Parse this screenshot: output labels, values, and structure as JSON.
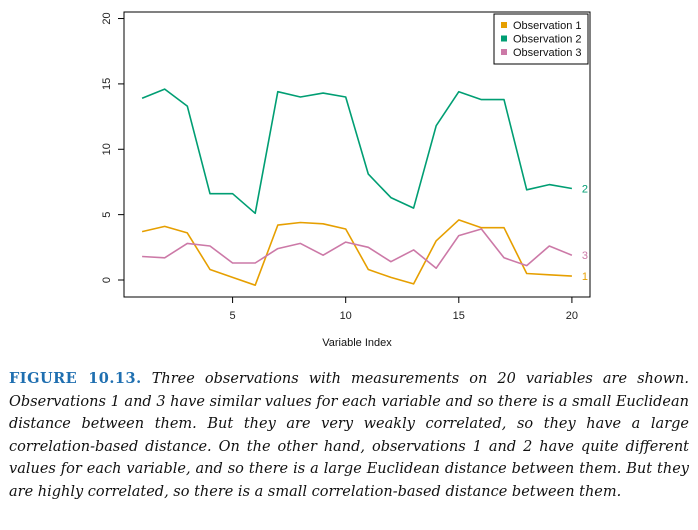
{
  "chart_data": {
    "type": "line",
    "x": [
      1,
      2,
      3,
      4,
      5,
      6,
      7,
      8,
      9,
      10,
      11,
      12,
      13,
      14,
      15,
      16,
      17,
      18,
      19,
      20
    ],
    "xlabel": "Variable Index",
    "ylabel": "",
    "xlim": [
      0.2,
      20.8
    ],
    "ylim": [
      -1.3,
      20.5
    ],
    "xticks": [
      5,
      10,
      15,
      20
    ],
    "yticks": [
      0,
      5,
      10,
      15,
      20
    ],
    "legend_position": "top-right",
    "series": [
      {
        "name": "Observation 1",
        "end_label": "1",
        "color": "#E69F00",
        "values": [
          3.7,
          4.1,
          3.6,
          0.8,
          0.2,
          -0.4,
          4.2,
          4.4,
          4.3,
          3.9,
          0.8,
          0.2,
          -0.3,
          3.0,
          4.6,
          4.0,
          4.0,
          0.5,
          0.4,
          0.3
        ]
      },
      {
        "name": "Observation 2",
        "end_label": "2",
        "color": "#009E73",
        "values": [
          13.9,
          14.6,
          13.3,
          6.6,
          6.6,
          5.1,
          14.4,
          14.0,
          14.3,
          14.0,
          8.1,
          6.3,
          5.5,
          11.8,
          14.4,
          13.8,
          13.8,
          6.9,
          7.3,
          7.0
        ]
      },
      {
        "name": "Observation 3",
        "end_label": "3",
        "color": "#CC79A7",
        "values": [
          1.8,
          1.7,
          2.8,
          2.6,
          1.3,
          1.3,
          2.4,
          2.8,
          1.9,
          2.9,
          2.5,
          1.4,
          2.3,
          0.9,
          3.4,
          3.9,
          1.7,
          1.1,
          2.6,
          1.9
        ]
      }
    ]
  },
  "caption": {
    "label": "FIGURE 10.13.",
    "text": "Three observations with measurements on 20 variables are shown. Observations 1 and 3 have similar values for each variable and so there is a small Euclidean distance between them. But they are very weakly correlated, so they have a large correlation-based distance. On the other hand, observations 1 and 2 have quite different values for each variable, and so there is a large Euclidean distance between them. But they are highly correlated, so there is a small correlation-based distance between them."
  }
}
